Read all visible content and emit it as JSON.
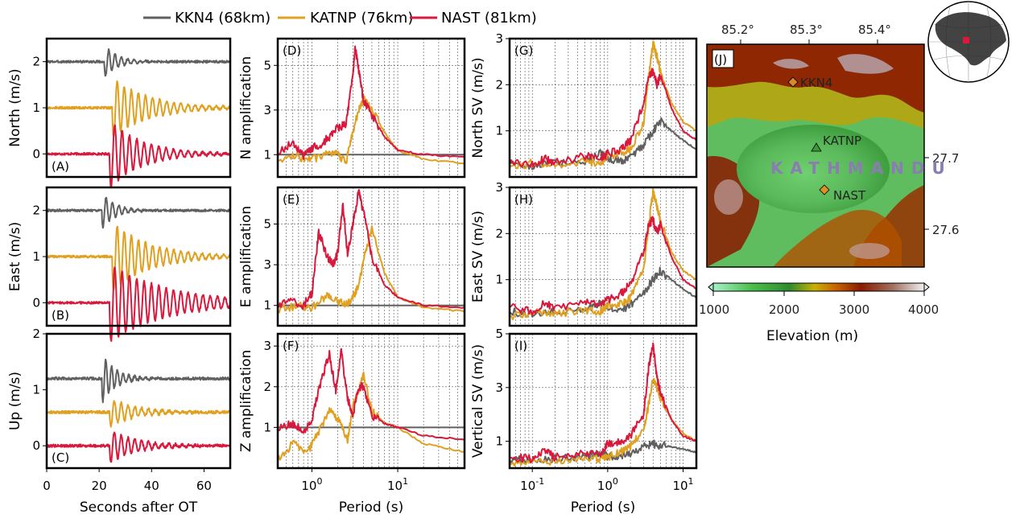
{
  "legend": [
    {
      "label": "KKN4 (68km)",
      "color": "#606060"
    },
    {
      "label": "KATNP (76km)",
      "color": "#e0a020"
    },
    {
      "label": "NAST (81km)",
      "color": "#d8183c"
    }
  ],
  "chart_data": [
    {
      "type": "line",
      "panel": "(A)",
      "ylabel": "North (m/s)",
      "xlabel": "",
      "xlim": [
        0,
        70
      ],
      "ylim": [
        -0.5,
        2.5
      ],
      "yticks": [
        "0",
        "1",
        "2"
      ],
      "xticks": [],
      "series": [
        {
          "name": "KKN4 (68km)",
          "color": "#606060",
          "offset": 2.0,
          "onset": 22,
          "peak_amp": 0.35,
          "period": 2.4,
          "decay": 5
        },
        {
          "name": "KATNP (76km)",
          "color": "#e0a020",
          "offset": 1.0,
          "onset": 25,
          "peak_amp": 0.65,
          "period": 2.7,
          "decay": 14
        },
        {
          "name": "NAST (81km)",
          "color": "#d8183c",
          "offset": 0.0,
          "onset": 24,
          "peak_amp": 0.75,
          "period": 2.8,
          "decay": 12
        }
      ]
    },
    {
      "type": "line",
      "panel": "(B)",
      "ylabel": "East (m/s)",
      "xlabel": "",
      "xlim": [
        0,
        70
      ],
      "ylim": [
        -0.5,
        2.5
      ],
      "yticks": [
        "0",
        "1",
        "2"
      ],
      "xticks": [],
      "series": [
        {
          "name": "KKN4 (68km)",
          "color": "#606060",
          "offset": 2.0,
          "onset": 21,
          "peak_amp": 0.4,
          "period": 2.4,
          "decay": 5
        },
        {
          "name": "KATNP (76km)",
          "color": "#e0a020",
          "offset": 1.0,
          "onset": 25,
          "peak_amp": 0.75,
          "period": 2.7,
          "decay": 14
        },
        {
          "name": "NAST (81km)",
          "color": "#d8183c",
          "offset": 0.0,
          "onset": 24,
          "peak_amp": 0.85,
          "period": 2.8,
          "decay": 22
        }
      ]
    },
    {
      "type": "line",
      "panel": "(C)",
      "ylabel": "Up (m/s)",
      "xlabel": "Seconds after OT",
      "xlim": [
        0,
        70
      ],
      "ylim": [
        -0.4,
        2.0
      ],
      "yticks": [
        "0",
        "1",
        "2"
      ],
      "xticks": [
        "0",
        "20",
        "40",
        "60"
      ],
      "series": [
        {
          "name": "KKN4 (68km)",
          "color": "#606060",
          "offset": 1.2,
          "onset": 21,
          "peak_amp": 0.45,
          "period": 2.2,
          "decay": 5
        },
        {
          "name": "KATNP (76km)",
          "color": "#e0a020",
          "offset": 0.6,
          "onset": 24,
          "peak_amp": 0.25,
          "period": 2.6,
          "decay": 10
        },
        {
          "name": "NAST (81km)",
          "color": "#d8183c",
          "offset": 0.0,
          "onset": 24,
          "peak_amp": 0.3,
          "period": 2.6,
          "decay": 10
        }
      ]
    },
    {
      "type": "line",
      "panel": "(D)",
      "ylabel": "N amplification",
      "xlabel": "",
      "xscale": "log",
      "xlim": [
        0.4,
        60
      ],
      "ylim": [
        0,
        6.2
      ],
      "yticks": [
        "1",
        "3",
        "5"
      ],
      "xticks": [],
      "series": [
        {
          "name": "KKN4 (68km)",
          "color": "#606060",
          "x": [
            0.4,
            60
          ],
          "y": [
            1,
            1
          ]
        },
        {
          "name": "KATNP (76km)",
          "color": "#e0a020",
          "x": [
            0.4,
            0.7,
            1.0,
            1.5,
            2.0,
            2.5,
            3.0,
            3.5,
            4.0,
            5.0,
            7.0,
            10,
            20,
            60
          ],
          "y": [
            0.8,
            0.9,
            0.8,
            1.0,
            1.0,
            0.7,
            2.0,
            3.0,
            3.5,
            3.0,
            2.0,
            1.2,
            0.8,
            0.6
          ]
        },
        {
          "name": "NAST (81km)",
          "color": "#d8183c",
          "x": [
            0.4,
            0.6,
            0.8,
            1.0,
            1.3,
            1.6,
            2.0,
            2.5,
            3.0,
            3.2,
            3.6,
            4.0,
            5.0,
            7.0,
            10,
            20,
            60
          ],
          "y": [
            1.0,
            1.6,
            0.9,
            1.3,
            1.5,
            1.8,
            2.2,
            2.4,
            4.5,
            5.8,
            4.5,
            3.4,
            2.8,
            1.8,
            1.2,
            1.0,
            0.9
          ]
        }
      ]
    },
    {
      "type": "line",
      "panel": "(E)",
      "ylabel": "E amplification",
      "xlabel": "",
      "xscale": "log",
      "xlim": [
        0.4,
        60
      ],
      "ylim": [
        0,
        6.8
      ],
      "yticks": [
        "1",
        "3",
        "5"
      ],
      "xticks": [],
      "series": [
        {
          "name": "KKN4 (68km)",
          "color": "#606060",
          "x": [
            0.4,
            60
          ],
          "y": [
            1,
            1
          ]
        },
        {
          "name": "KATNP (76km)",
          "color": "#e0a020",
          "x": [
            0.4,
            0.7,
            1.0,
            1.5,
            2.0,
            2.5,
            3.0,
            3.5,
            4.0,
            5.0,
            7.0,
            10,
            20,
            60
          ],
          "y": [
            0.8,
            1.0,
            0.9,
            1.5,
            1.2,
            1.0,
            1.4,
            2.0,
            3.2,
            4.8,
            2.6,
            1.4,
            0.9,
            0.7
          ]
        },
        {
          "name": "NAST (81km)",
          "color": "#d8183c",
          "x": [
            0.4,
            0.6,
            0.8,
            1.0,
            1.2,
            1.5,
            1.8,
            2.0,
            2.3,
            2.6,
            3.0,
            3.5,
            4.0,
            5.0,
            7.0,
            10,
            20,
            60
          ],
          "y": [
            1.0,
            1.2,
            1.0,
            1.6,
            4.6,
            3.4,
            3.0,
            3.6,
            6.0,
            3.5,
            5.0,
            6.6,
            5.6,
            3.4,
            2.0,
            1.4,
            1.0,
            0.9
          ]
        }
      ]
    },
    {
      "type": "line",
      "panel": "(F)",
      "ylabel": "Z amplification",
      "xlabel": "Period (s)",
      "xscale": "log",
      "xlim": [
        0.4,
        60
      ],
      "ylim": [
        0,
        3.3
      ],
      "yticks": [
        "1",
        "2",
        "3"
      ],
      "xticks": [
        "10^0",
        "10^1"
      ],
      "series": [
        {
          "name": "KKN4 (68km)",
          "color": "#606060",
          "x": [
            0.4,
            60
          ],
          "y": [
            1,
            1
          ]
        },
        {
          "name": "KATNP (76km)",
          "color": "#e0a020",
          "x": [
            0.4,
            0.6,
            0.9,
            1.2,
            1.6,
            2.0,
            2.6,
            3.0,
            3.5,
            4.0,
            5.0,
            7.0,
            10,
            20,
            60
          ],
          "y": [
            0.2,
            0.6,
            0.4,
            0.9,
            1.4,
            1.2,
            0.7,
            1.5,
            1.9,
            2.3,
            1.4,
            1.1,
            1.0,
            0.6,
            0.4
          ]
        },
        {
          "name": "NAST (81km)",
          "color": "#d8183c",
          "x": [
            0.4,
            0.6,
            0.8,
            1.0,
            1.3,
            1.6,
            1.9,
            2.2,
            2.6,
            3.0,
            3.5,
            4.0,
            5.0,
            7.0,
            10,
            20,
            60
          ],
          "y": [
            1.0,
            1.1,
            0.9,
            1.2,
            2.2,
            2.8,
            1.9,
            2.9,
            1.7,
            1.3,
            2.0,
            2.0,
            1.3,
            1.1,
            1.0,
            0.8,
            0.7
          ]
        }
      ]
    },
    {
      "type": "line",
      "panel": "(G)",
      "ylabel": "North SV (m/s)",
      "xlabel": "",
      "xscale": "log",
      "xlim": [
        0.05,
        15
      ],
      "ylim": [
        0,
        3
      ],
      "yticks": [
        "1",
        "2",
        "3"
      ],
      "xticks": [],
      "series": [
        {
          "name": "KKN4 (68km)",
          "color": "#606060",
          "x": [
            0.05,
            0.1,
            0.2,
            0.5,
            0.8,
            1.0,
            1.5,
            2.0,
            3.0,
            4.0,
            5.0,
            7.0,
            10,
            15
          ],
          "y": [
            0.3,
            0.25,
            0.3,
            0.35,
            0.5,
            0.4,
            0.35,
            0.45,
            0.7,
            1.0,
            1.2,
            1.0,
            0.8,
            0.6
          ]
        },
        {
          "name": "KATNP (76km)",
          "color": "#e0a020",
          "x": [
            0.05,
            0.1,
            0.2,
            0.5,
            0.8,
            1.0,
            1.5,
            2.0,
            3.0,
            3.5,
            4.0,
            4.5,
            5.0,
            7.0,
            10,
            15
          ],
          "y": [
            0.2,
            0.3,
            0.25,
            0.35,
            0.3,
            0.45,
            0.5,
            0.6,
            1.2,
            2.2,
            2.9,
            2.6,
            2.3,
            1.6,
            1.2,
            1.0
          ]
        },
        {
          "name": "NAST (81km)",
          "color": "#d8183c",
          "x": [
            0.05,
            0.1,
            0.15,
            0.2,
            0.5,
            0.8,
            1.0,
            1.5,
            2.0,
            3.0,
            3.5,
            4.0,
            4.5,
            5.0,
            7.0,
            10,
            15
          ],
          "y": [
            0.3,
            0.25,
            0.4,
            0.3,
            0.45,
            0.4,
            0.5,
            0.6,
            0.8,
            1.6,
            2.2,
            2.3,
            2.0,
            2.2,
            1.5,
            1.0,
            0.8
          ]
        }
      ]
    },
    {
      "type": "line",
      "panel": "(H)",
      "ylabel": "East SV (m/s)",
      "xlabel": "",
      "xscale": "log",
      "xlim": [
        0.05,
        15
      ],
      "ylim": [
        0,
        3
      ],
      "yticks": [
        "1",
        "2",
        "3"
      ],
      "xticks": [],
      "series": [
        {
          "name": "KKN4 (68km)",
          "color": "#606060",
          "x": [
            0.05,
            0.1,
            0.2,
            0.5,
            0.8,
            1.0,
            1.5,
            2.0,
            3.0,
            4.0,
            5.0,
            7.0,
            10,
            15
          ],
          "y": [
            0.3,
            0.25,
            0.3,
            0.35,
            0.5,
            0.4,
            0.35,
            0.45,
            0.7,
            1.0,
            1.2,
            1.0,
            0.8,
            0.6
          ]
        },
        {
          "name": "KATNP (76km)",
          "color": "#e0a020",
          "x": [
            0.05,
            0.1,
            0.2,
            0.5,
            0.8,
            1.0,
            1.5,
            2.0,
            3.0,
            3.5,
            4.0,
            4.5,
            5.0,
            7.0,
            10,
            15
          ],
          "y": [
            0.2,
            0.3,
            0.25,
            0.35,
            0.3,
            0.45,
            0.5,
            0.6,
            1.2,
            2.2,
            2.9,
            2.6,
            2.3,
            1.6,
            1.2,
            1.0
          ]
        },
        {
          "name": "NAST (81km)",
          "color": "#d8183c",
          "x": [
            0.05,
            0.1,
            0.15,
            0.2,
            0.5,
            0.8,
            1.0,
            1.5,
            2.0,
            3.0,
            3.5,
            4.0,
            4.5,
            5.0,
            7.0,
            10,
            15
          ],
          "y": [
            0.4,
            0.3,
            0.5,
            0.35,
            0.5,
            0.45,
            0.55,
            0.7,
            0.9,
            1.6,
            2.2,
            2.3,
            2.0,
            2.2,
            1.5,
            1.0,
            0.8
          ]
        }
      ]
    },
    {
      "type": "line",
      "panel": "(I)",
      "ylabel": "Vertical SV (m/s)",
      "xlabel": "Period (s)",
      "xscale": "log",
      "xlim": [
        0.05,
        15
      ],
      "ylim": [
        0,
        5
      ],
      "yticks": [
        "1",
        "3",
        "5"
      ],
      "xticks": [
        "10^-1",
        "10^0",
        "10^1"
      ],
      "series": [
        {
          "name": "KKN4 (68km)",
          "color": "#606060",
          "x": [
            0.05,
            0.1,
            0.2,
            0.5,
            0.8,
            1.0,
            1.5,
            2.0,
            3.0,
            4.0,
            5.0,
            7.0,
            10,
            15
          ],
          "y": [
            0.3,
            0.3,
            0.35,
            0.4,
            0.55,
            0.45,
            0.45,
            0.55,
            0.8,
            0.9,
            0.85,
            0.8,
            0.7,
            0.6
          ]
        },
        {
          "name": "KATNP (76km)",
          "color": "#e0a020",
          "x": [
            0.05,
            0.1,
            0.2,
            0.5,
            0.8,
            1.0,
            1.5,
            2.0,
            3.0,
            3.5,
            4.0,
            4.5,
            5.0,
            7.0,
            10,
            15
          ],
          "y": [
            0.2,
            0.3,
            0.25,
            0.3,
            0.35,
            0.4,
            0.6,
            0.8,
            1.4,
            2.4,
            3.3,
            3.0,
            2.6,
            1.8,
            1.3,
            1.0
          ]
        },
        {
          "name": "NAST (81km)",
          "color": "#d8183c",
          "x": [
            0.05,
            0.1,
            0.15,
            0.2,
            0.5,
            0.8,
            1.0,
            1.5,
            2.0,
            3.0,
            3.5,
            4.0,
            4.5,
            5.0,
            7.0,
            10,
            15
          ],
          "y": [
            0.4,
            0.35,
            0.7,
            0.4,
            0.6,
            0.5,
            0.9,
            1.0,
            1.2,
            2.0,
            3.8,
            4.6,
            3.4,
            2.8,
            1.8,
            1.2,
            1.0
          ]
        }
      ]
    }
  ],
  "map": {
    "panel": "(J)",
    "lon_labels": [
      "85.2°",
      "85.3°",
      "85.4°"
    ],
    "lat_labels": [
      "27.7",
      "27.6"
    ],
    "city_label": "KATHMANDU",
    "stations": [
      {
        "name": "KKN4",
        "marker": "diamond",
        "color": "#d9892a"
      },
      {
        "name": "KATNP",
        "marker": "triangle",
        "color": "#3a9a3a"
      },
      {
        "name": "NAST",
        "marker": "diamond",
        "color": "#e0901e"
      }
    ],
    "colorbar": {
      "ticks": [
        "1000",
        "2000",
        "3000",
        "4000"
      ],
      "label": "Elevation (m)",
      "colors": [
        "#a8f0c8",
        "#4cc04c",
        "#2e8b2e",
        "#c8b000",
        "#c86400",
        "#8b1a00",
        "#a07060",
        "#f0f0f0"
      ]
    }
  }
}
